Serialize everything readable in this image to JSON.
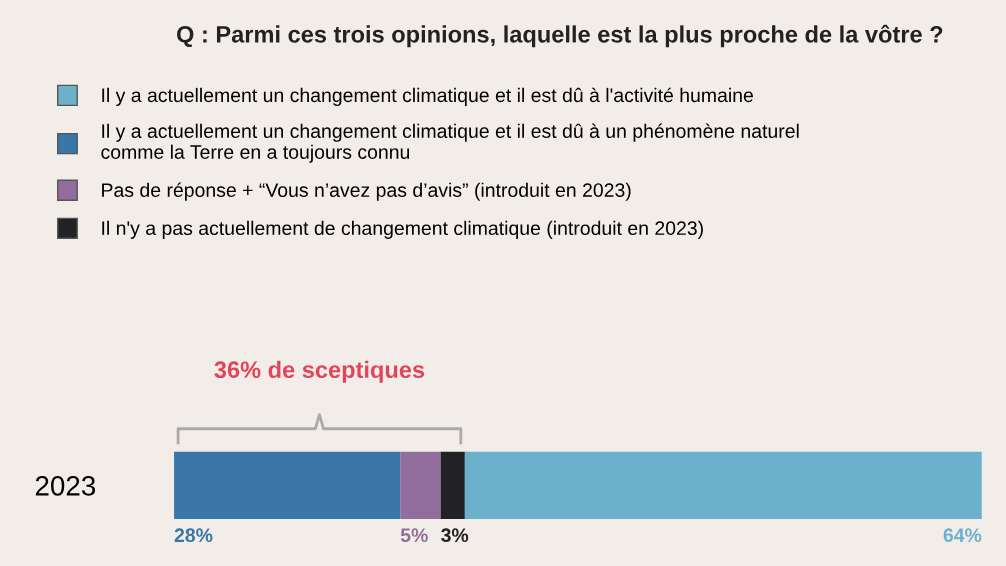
{
  "chart_data": {
    "type": "bar",
    "orientation": "horizontal",
    "stacked": true,
    "title": "Q : Parmi ces trois opinions, laquelle est la plus proche de la vôtre ?",
    "categories": [
      "2023"
    ],
    "series": [
      {
        "name": "Il y a actuellement un changement climatique et il est dû à un phénomène naturel\ncomme la Terre en a toujours connu",
        "color": "#3a76a8",
        "values": [
          28
        ],
        "value_labels": [
          "28%"
        ]
      },
      {
        "name": "Pas de réponse + “Vous n’avez pas d’avis” (introduit en 2023)",
        "color": "#916e9c",
        "values": [
          5
        ],
        "value_labels": [
          "5%"
        ]
      },
      {
        "name": "Il n'y a pas actuellement de changement climatique (introduit en 2023)",
        "color": "#222226",
        "values": [
          3
        ],
        "value_labels": [
          "3%"
        ]
      },
      {
        "name": "Il y a actuellement un changement climatique et il est dû à l'activité humaine",
        "color": "#6bb1cb",
        "values": [
          64
        ],
        "value_labels": [
          "64%"
        ]
      }
    ],
    "annotations": [
      "36% de sceptiques"
    ],
    "legend": "top"
  }
}
